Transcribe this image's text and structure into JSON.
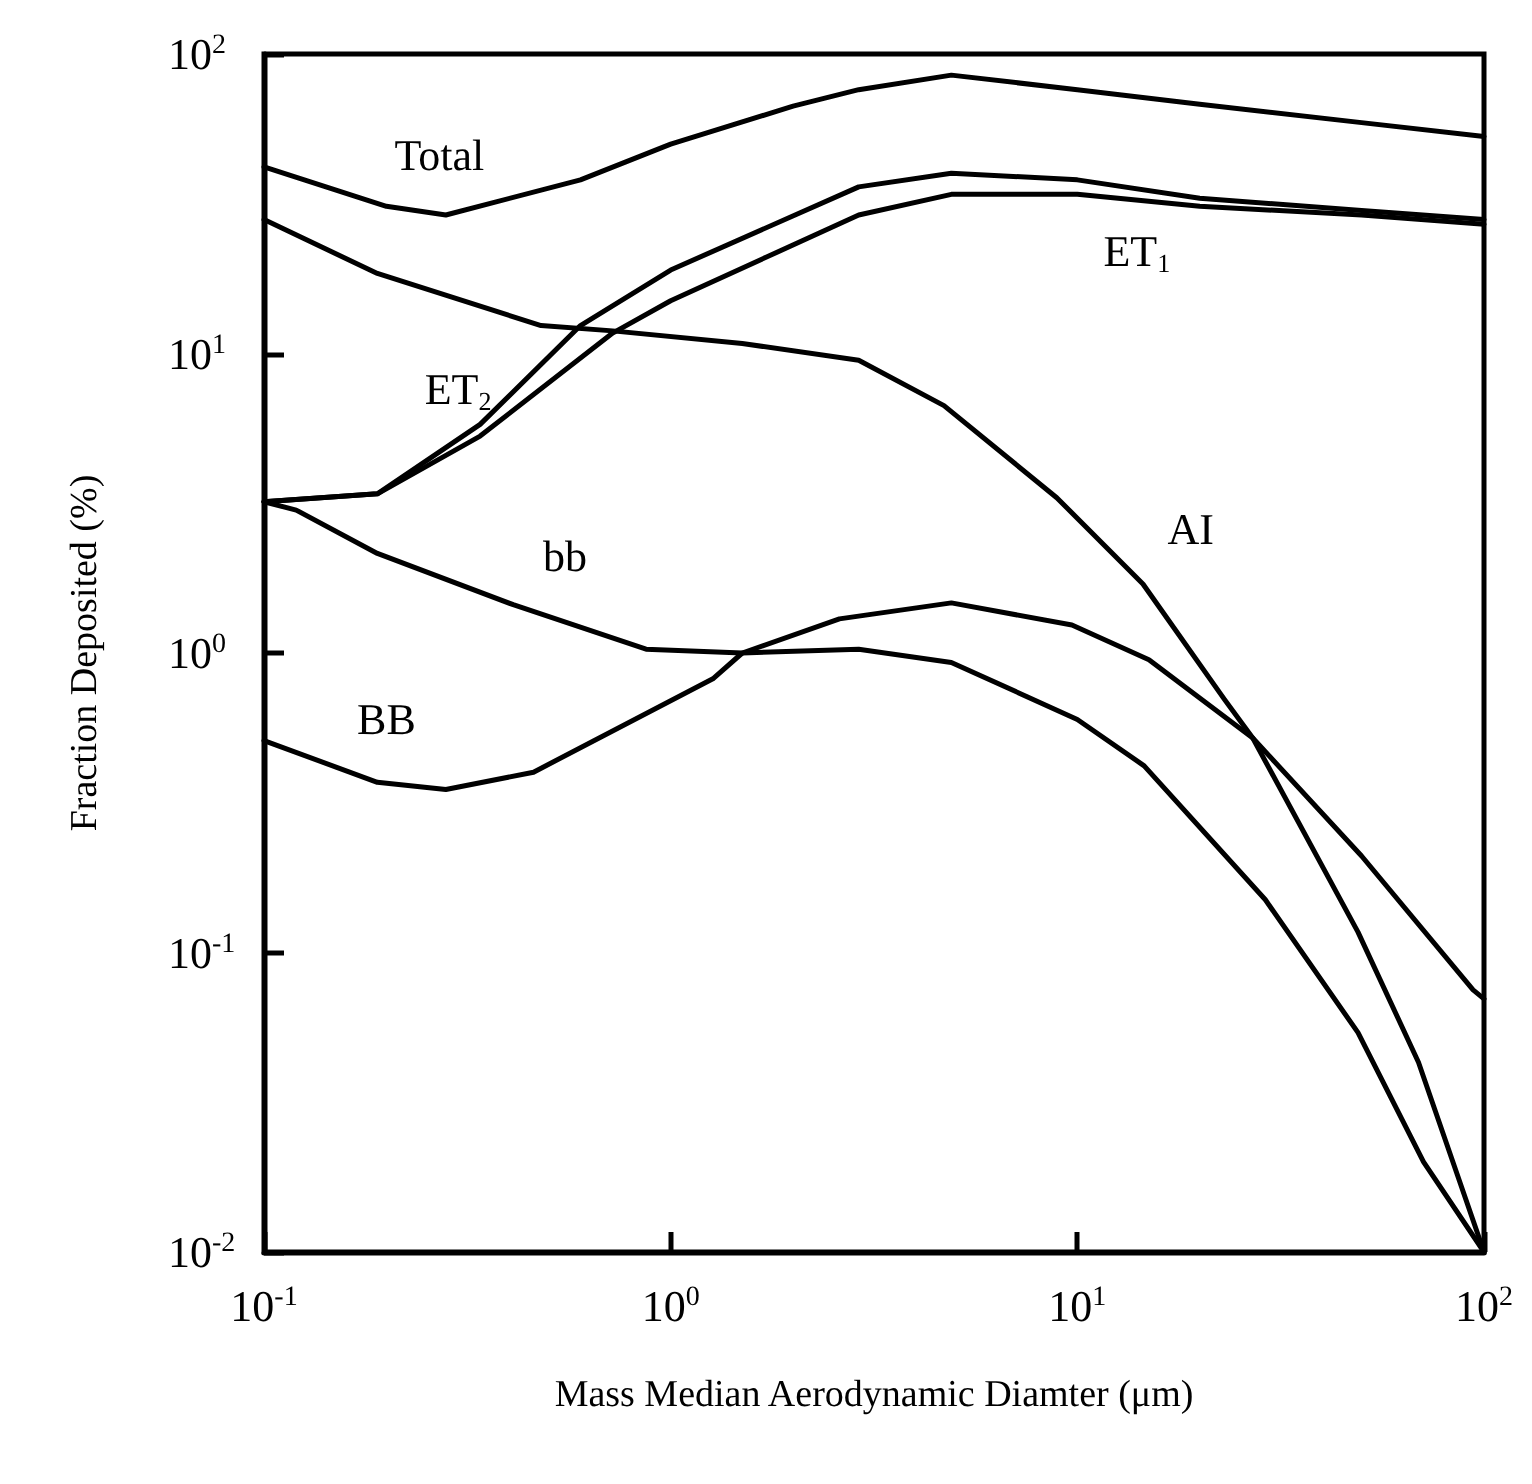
{
  "chart_data": {
    "type": "line",
    "xlabel": "Mass Median Aerodynamic Diamter (μm)",
    "ylabel": "Fraction Deposited (%)",
    "log": "xy",
    "xlim": [
      0.1,
      100
    ],
    "ylim": [
      0.01,
      100
    ],
    "xticks": [
      {
        "value": 0.1,
        "label": "10$^{-1}$"
      },
      {
        "value": 1,
        "label": "10$^{0}$"
      },
      {
        "value": 10,
        "label": "10$^{1}$"
      },
      {
        "value": 100,
        "label": "10$^{2}$"
      }
    ],
    "yticks": [
      {
        "value": 0.01,
        "label": "10$^{-2}$"
      },
      {
        "value": 0.1,
        "label": "10$^{-1}$"
      },
      {
        "value": 1,
        "label": "10$^{0}$"
      },
      {
        "value": 10,
        "label": "10$^{1}$"
      },
      {
        "value": 100,
        "label": "10$^{2}$"
      }
    ],
    "grid": false,
    "legend": false,
    "marker": "none",
    "line_style": "solid",
    "series": [
      {
        "name": "Total",
        "color": "#000000",
        "x": [
          0.1,
          0.2,
          0.28,
          0.6,
          1,
          2,
          2.9,
          4.9,
          10,
          20,
          50,
          100
        ],
        "values": [
          42,
          31,
          29,
          38,
          50,
          67,
          76,
          85,
          76,
          68,
          59,
          53
        ]
      },
      {
        "name": "ET$_{2}$",
        "color": "#000000",
        "x": [
          0.1,
          0.19,
          0.34,
          0.6,
          1,
          2.9,
          4.9,
          10,
          20,
          50,
          100
        ],
        "values": [
          3.2,
          3.4,
          5.8,
          12.4,
          19,
          36,
          40,
          38,
          33,
          30,
          28
        ]
      },
      {
        "name": "ET$_{1}$",
        "color": "#000000",
        "x": [
          0.1,
          0.19,
          0.34,
          0.72,
          1,
          2.9,
          4.9,
          10,
          20,
          50,
          100
        ],
        "values": [
          3.2,
          3.4,
          5.3,
          11.7,
          15,
          29,
          34,
          34,
          31,
          29,
          27
        ]
      },
      {
        "name": "AI",
        "color": "#000000",
        "x": [
          0.1,
          0.19,
          0.48,
          0.72,
          1.5,
          2.9,
          4.7,
          8.9,
          14.5,
          23,
          27,
          49,
          69,
          100
        ],
        "values": [
          28,
          18.5,
          12.4,
          11.9,
          10.8,
          9.5,
          6.7,
          3.3,
          1.7,
          0.7,
          0.52,
          0.117,
          0.043,
          0.01
        ]
      },
      {
        "name": "bb",
        "color": "#000000",
        "x": [
          0.1,
          0.12,
          0.19,
          0.41,
          0.87,
          1.5,
          2.9,
          4.9,
          10,
          14.6,
          29,
          49,
          71,
          100
        ],
        "values": [
          3.2,
          3.0,
          2.15,
          1.45,
          1.03,
          1.0,
          1.03,
          0.93,
          0.6,
          0.42,
          0.15,
          0.054,
          0.02,
          0.01
        ]
      },
      {
        "name": "BB",
        "color": "#000000",
        "x": [
          0.1,
          0.19,
          0.28,
          0.46,
          1.27,
          1.5,
          2.6,
          4.9,
          9.7,
          15,
          27,
          50,
          94,
          100
        ],
        "values": [
          0.51,
          0.37,
          0.35,
          0.4,
          0.82,
          1.0,
          1.3,
          1.47,
          1.24,
          0.95,
          0.52,
          0.21,
          0.075,
          0.07
        ]
      }
    ]
  }
}
